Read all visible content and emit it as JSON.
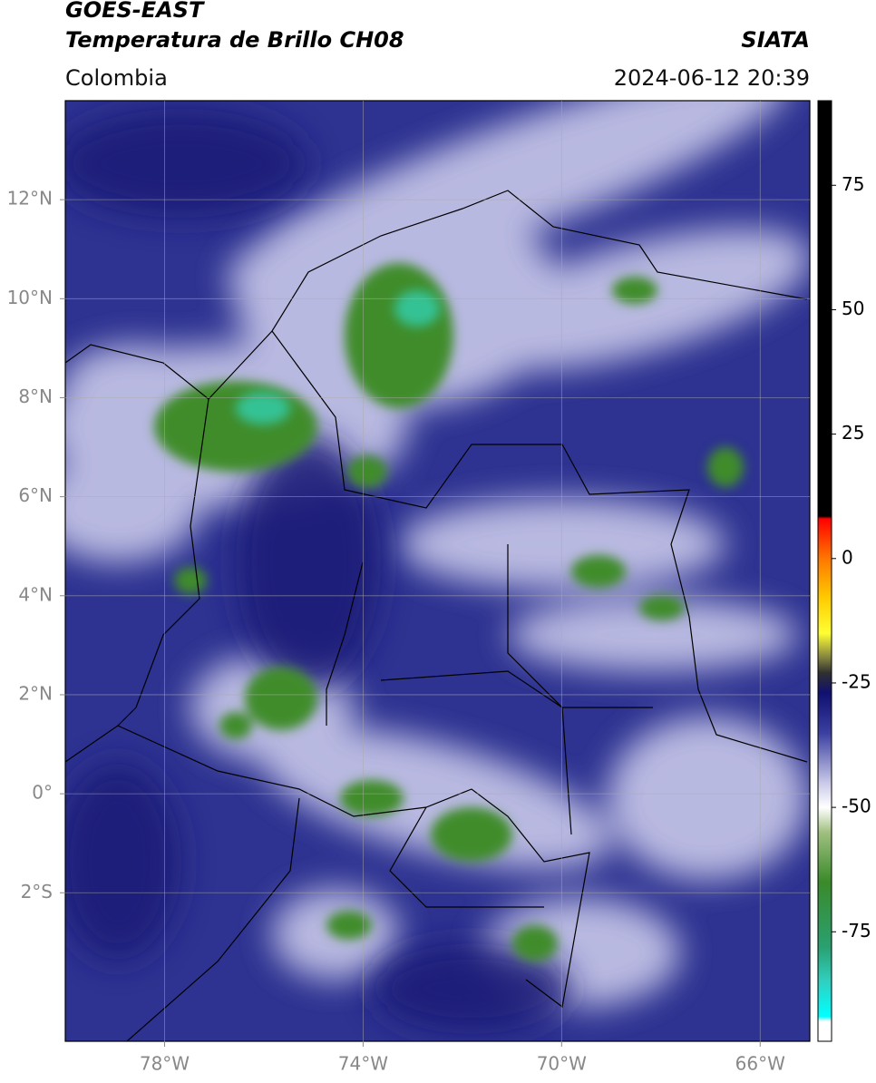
{
  "header": {
    "title_line1": "GOES-EAST",
    "title_line2": "Temperatura de Brillo CH08",
    "region": "Colombia",
    "source": "SIATA",
    "timestamp": "2024-06-12 20:39"
  },
  "map": {
    "xlim": [
      -80,
      -65
    ],
    "ylim": [
      -5,
      14
    ],
    "grid": true,
    "xticks": [
      {
        "value": -78,
        "label": "78°W"
      },
      {
        "value": -74,
        "label": "74°W"
      },
      {
        "value": -70,
        "label": "70°W"
      },
      {
        "value": -66,
        "label": "66°W"
      }
    ],
    "yticks": [
      {
        "value": 12,
        "label": "12°N"
      },
      {
        "value": 10,
        "label": "10°N"
      },
      {
        "value": 8,
        "label": "8°N"
      },
      {
        "value": 6,
        "label": "6°N"
      },
      {
        "value": 4,
        "label": "4°N"
      },
      {
        "value": 2,
        "label": "2°N"
      },
      {
        "value": 0,
        "label": "0°"
      },
      {
        "value": -2,
        "label": "2°S"
      }
    ]
  },
  "colorbar": {
    "ylim": [
      -97,
      92
    ],
    "yticks": [
      75,
      50,
      25,
      0,
      -25,
      -50,
      -75
    ],
    "stops": [
      {
        "value": 92,
        "color": "#000000"
      },
      {
        "value": 8.5,
        "color": "#000000"
      },
      {
        "value": 8,
        "color": "#ff0000"
      },
      {
        "value": 0,
        "color": "#ff7700"
      },
      {
        "value": -8,
        "color": "#ffcc00"
      },
      {
        "value": -15,
        "color": "#ffff33"
      },
      {
        "value": -20,
        "color": "#808040"
      },
      {
        "value": -23,
        "color": "#303030"
      },
      {
        "value": -27,
        "color": "#101070"
      },
      {
        "value": -35,
        "color": "#3a3fa0"
      },
      {
        "value": -45,
        "color": "#c8c8e8"
      },
      {
        "value": -50,
        "color": "#ffffff"
      },
      {
        "value": -55,
        "color": "#a0c080"
      },
      {
        "value": -65,
        "color": "#3a8a2a"
      },
      {
        "value": -78,
        "color": "#2aa070"
      },
      {
        "value": -85,
        "color": "#30d0c0"
      },
      {
        "value": -92,
        "color": "#00ffff"
      },
      {
        "value": -93,
        "color": "#ffffff"
      },
      {
        "value": -97,
        "color": "#ffffff"
      }
    ]
  }
}
